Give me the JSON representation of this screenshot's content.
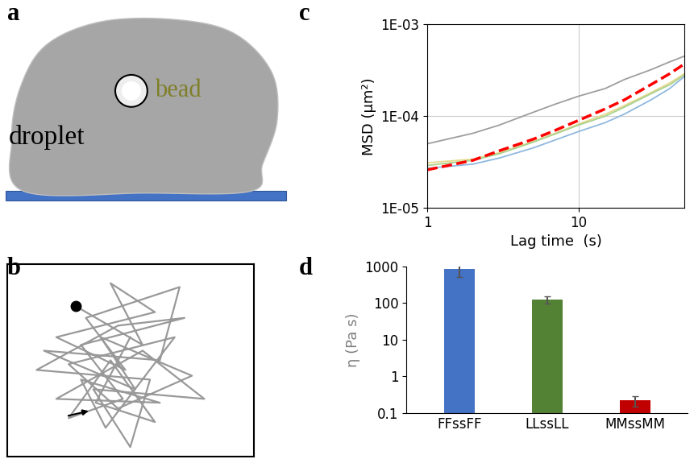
{
  "diagram": {
    "label": "a",
    "droplet": "droplet",
    "bead": "bead"
  },
  "trajectory": {
    "label": "b"
  },
  "chart_data": [
    {
      "type": "line",
      "title": "c",
      "x_label": "Lag time  (s)",
      "y_label": "MSD (μm²)",
      "log": true,
      "grid": true,
      "x": [
        1,
        2,
        3,
        5,
        7,
        10,
        15,
        20,
        30,
        40,
        50
      ],
      "xlim": [
        1,
        50
      ],
      "xticks": [
        1,
        10
      ],
      "ylim": [
        1e-05,
        0.001
      ],
      "yticks": [
        {
          "value": 1e-05,
          "label": "1E-05"
        },
        {
          "value": 0.0001,
          "label": "1E-04"
        },
        {
          "value": 0.001,
          "label": "1E-03"
        }
      ],
      "series": [
        {
          "color": "#9e9e9e",
          "line_style": "solid",
          "values": [
            5e-05,
            6.5e-05,
            8e-05,
            0.00011,
            0.000135,
            0.000165,
            0.0002,
            0.00025,
            0.00032,
            0.00039,
            0.00045
          ]
        },
        {
          "color": "#e6d98c",
          "line_style": "solid",
          "values": [
            3.1e-05,
            3.4e-05,
            4e-05,
            5.3e-05,
            6.5e-05,
            8.2e-05,
            0.000105,
            0.00013,
            0.00018,
            0.00023,
            0.00029
          ]
        },
        {
          "color": "#a9d18e",
          "line_style": "solid",
          "values": [
            2.9e-05,
            3.3e-05,
            3.9e-05,
            5.2e-05,
            6.4e-05,
            8e-05,
            0.0001,
            0.000125,
            0.000175,
            0.00022,
            0.00028
          ]
        },
        {
          "color": "#8fb8de",
          "line_style": "solid",
          "values": [
            2.7e-05,
            3e-05,
            3.5e-05,
            4.5e-05,
            5.5e-05,
            6.8e-05,
            8.5e-05,
            0.000105,
            0.00015,
            0.0002,
            0.00027
          ]
        },
        {
          "color": "#ff0000",
          "line_style": "dashed",
          "values": [
            2.6e-05,
            3.3e-05,
            4.2e-05,
            5.6e-05,
            7e-05,
            9e-05,
            0.00012,
            0.00015,
            0.00022,
            0.00029,
            0.00037
          ]
        }
      ]
    },
    {
      "type": "bar",
      "title": "d",
      "y_label": "η (Pa s)",
      "log": "y",
      "categories": [
        "FFssFF",
        "LLssLL",
        "MMssMM"
      ],
      "values": [
        850,
        125,
        0.22
      ],
      "errors": [
        350,
        30,
        0.07
      ],
      "colors": [
        "#4472c4",
        "#548235",
        "#c00000"
      ],
      "ylim": [
        0.1,
        1000
      ],
      "yticks": [
        0.1,
        1,
        10,
        100,
        1000
      ]
    }
  ]
}
